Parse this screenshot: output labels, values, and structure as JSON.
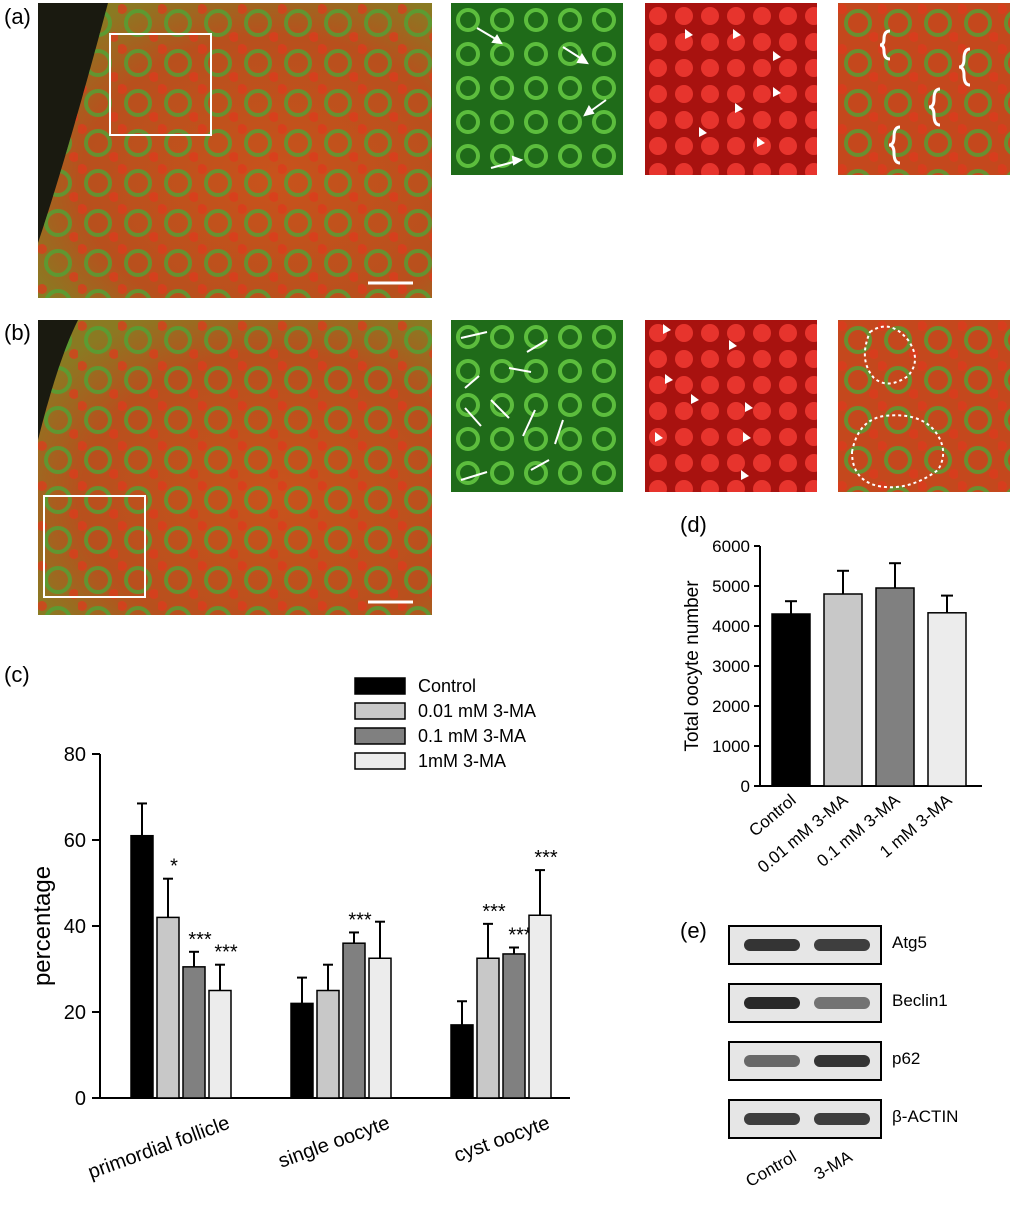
{
  "panels": {
    "a": "(a)",
    "b": "(b)",
    "c": "(c)",
    "d": "(d)",
    "e": "(e)"
  },
  "colors": {
    "red_channel": "#d81e1e",
    "green_channel": "#3aa52a",
    "merge_bg": "#c94a1f"
  },
  "chart_data": [
    {
      "id": "c",
      "type": "bar",
      "ylabel": "percentage",
      "ylim": [
        0,
        80
      ],
      "yticks": [
        0,
        20,
        40,
        60,
        80
      ],
      "categories": [
        "primordial follicle",
        "single oocyte",
        "cyst oocyte"
      ],
      "series": [
        {
          "name": "Control",
          "color": "#000000",
          "values": [
            61,
            22,
            17
          ],
          "errors": [
            7.5,
            6,
            5.5
          ],
          "sig": [
            "",
            "",
            ""
          ]
        },
        {
          "name": "0.01 mM 3-MA",
          "color": "#c8c8c8",
          "values": [
            42,
            25,
            32.5
          ],
          "errors": [
            9,
            6,
            8
          ],
          "sig": [
            "*",
            "",
            "***"
          ]
        },
        {
          "name": "0.1 mM 3-MA",
          "color": "#808080",
          "values": [
            30.5,
            36,
            33.5
          ],
          "errors": [
            3.5,
            2.5,
            1.5
          ],
          "sig": [
            "***",
            "***",
            "***"
          ]
        },
        {
          "name": "1mM 3-MA",
          "color": "#ececec",
          "values": [
            25,
            32.5,
            42.5
          ],
          "errors": [
            6,
            8.5,
            10.5
          ],
          "sig": [
            "***",
            "",
            "***"
          ]
        }
      ],
      "legend": "top-right"
    },
    {
      "id": "d",
      "type": "bar",
      "ylabel": "Total oocyte number",
      "ylim": [
        0,
        6000
      ],
      "yticks": [
        0,
        1000,
        2000,
        3000,
        4000,
        5000,
        6000
      ],
      "categories": [
        "Control",
        "0.01 mM 3-MA",
        "0.1 mM 3-MA",
        "1 mM 3-MA"
      ],
      "colors": [
        "#000000",
        "#c8c8c8",
        "#808080",
        "#ececec"
      ],
      "values": [
        4300,
        4800,
        4950,
        4330
      ],
      "errors": [
        320,
        580,
        620,
        430
      ]
    }
  ],
  "blot": {
    "bands": [
      "Atg5",
      "Beclin1",
      "p62",
      "β-ACTIN"
    ],
    "lanes": [
      "Control",
      "3-MA"
    ]
  }
}
